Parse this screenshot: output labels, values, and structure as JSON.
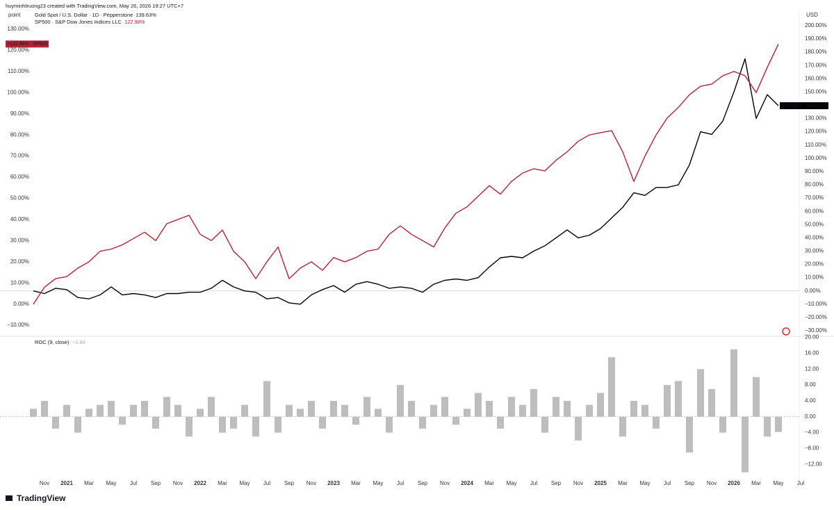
{
  "header": {
    "credit": "huyminhtruong23 created with TradingView.com, May 26, 2026 19:27 UTC+7",
    "brand": "TradingView"
  },
  "chart_data": [
    {
      "type": "line",
      "y_label": "point",
      "y2_label": "USD",
      "categories": [
        null,
        "Nov",
        null,
        "2021",
        null,
        "Mar",
        null,
        "May",
        null,
        "Jul",
        null,
        "Sep",
        null,
        "Nov",
        null,
        "2022",
        null,
        "Mar",
        null,
        "May",
        null,
        "Jul",
        null,
        "Sep",
        null,
        "Nov",
        null,
        "2023",
        null,
        "Mar",
        null,
        "May",
        null,
        "Jul",
        null,
        "Sep",
        null,
        "Nov",
        null,
        "2024",
        null,
        "Mar",
        null,
        "May",
        null,
        "Jul",
        null,
        "Sep",
        null,
        "Nov",
        null,
        "2025",
        null,
        "Mar",
        null,
        "May",
        null,
        "Jul",
        null,
        "Sep",
        null,
        "Nov",
        null,
        "2026",
        null,
        "Mar",
        null,
        "May",
        null,
        "Jul"
      ],
      "ylim": [
        -14.9,
        139.2
      ],
      "yticks": [
        {
          "value": 130,
          "label": "130.00%"
        },
        {
          "value": 120,
          "label": "120.00%"
        },
        {
          "value": 110,
          "label": "110.00%"
        },
        {
          "value": 100,
          "label": "100.00%"
        },
        {
          "value": 90,
          "label": "90.00%"
        },
        {
          "value": 80,
          "label": "80.00%"
        },
        {
          "value": 70,
          "label": "70.00%"
        },
        {
          "value": 60,
          "label": "60.00%"
        },
        {
          "value": 50,
          "label": "50.00%"
        },
        {
          "value": 40,
          "label": "40.00%"
        },
        {
          "value": 30,
          "label": "30.00%"
        },
        {
          "value": 20,
          "label": "20.00%"
        },
        {
          "value": 10,
          "label": "10.00%"
        },
        {
          "value": 0,
          "label": "0.00%"
        },
        {
          "value": -10,
          "label": "−10.00%"
        }
      ],
      "y2lim": [
        -33.7,
        212
      ],
      "y2ticks": [
        {
          "value": 200,
          "label": "200.00%"
        },
        {
          "value": 190,
          "label": "190.00%"
        },
        {
          "value": 180,
          "label": "180.00%"
        },
        {
          "value": 170,
          "label": "170.00%"
        },
        {
          "value": 160,
          "label": "160.00%"
        },
        {
          "value": 150,
          "label": "150.00%"
        },
        {
          "value": 140,
          "label": "140.00%"
        },
        {
          "value": 130,
          "label": "130.00%"
        },
        {
          "value": 120,
          "label": "120.00%"
        },
        {
          "value": 110,
          "label": "110.00%"
        },
        {
          "value": 100,
          "label": "100.00%"
        },
        {
          "value": 90,
          "label": "90.00%"
        },
        {
          "value": 80,
          "label": "80.00%"
        },
        {
          "value": 70,
          "label": "70.00%"
        },
        {
          "value": 60,
          "label": "60.00%"
        },
        {
          "value": 50,
          "label": "50.00%"
        },
        {
          "value": 40,
          "label": "40.00%"
        },
        {
          "value": 30,
          "label": "30.00%"
        },
        {
          "value": 20,
          "label": "20.00%"
        },
        {
          "value": 10,
          "label": "10.00%"
        },
        {
          "value": 0,
          "label": "0.00%"
        },
        {
          "value": -10,
          "label": "−10.00%"
        },
        {
          "value": -20,
          "label": "−20.00%"
        },
        {
          "value": -30,
          "label": "−30.00%"
        }
      ],
      "series": [
        {
          "name": "Gold Spot / U.S. Dollar · 1D · Pepperstone",
          "symbol": "XAUUSD",
          "color": "#000000",
          "axis": "y2",
          "last_label": "139.63%",
          "tag_label": "+139.63%",
          "values": [
            0,
            -2,
            2,
            1,
            -5,
            -6,
            -3,
            3,
            -3,
            -2,
            -3,
            -5,
            -2,
            -2,
            -1,
            -1,
            2,
            8,
            3,
            0,
            -1,
            -6,
            -5,
            -9,
            -10,
            -3,
            1,
            4,
            -1,
            5,
            7,
            5,
            2,
            3,
            2,
            -1,
            5,
            8,
            9,
            8,
            10,
            18,
            25,
            26,
            25,
            30,
            34,
            40,
            46,
            40,
            42,
            47,
            55,
            63,
            74,
            72,
            78,
            78,
            80,
            95,
            120,
            118,
            128,
            150,
            175,
            130,
            148,
            139.63,
            null,
            null
          ]
        },
        {
          "name": "SP500 · S&P Dow Jones Indices LLC",
          "symbol": "SP500",
          "color": "#b22234",
          "last_label": "122.98%",
          "tag_label": "+122.98%",
          "values": [
            0,
            8,
            12,
            13,
            17,
            20,
            25,
            26,
            28,
            31,
            34,
            30,
            38,
            40,
            42,
            33,
            30,
            35,
            25,
            20,
            12,
            20,
            27,
            12,
            17,
            20,
            16,
            22,
            20,
            22,
            25,
            26,
            33,
            37,
            33,
            30,
            27,
            36,
            43,
            46,
            51,
            56,
            52,
            58,
            62,
            64,
            63,
            68,
            72,
            77,
            80,
            81,
            82,
            72,
            58,
            70,
            80,
            88,
            93,
            99,
            103,
            104,
            108,
            110,
            108,
            100,
            112,
            122.98,
            null,
            null
          ]
        }
      ]
    },
    {
      "type": "bar",
      "title": "ROC (9, close)",
      "last_label": "−3.84",
      "color": "#bdbdbd",
      "categories": [
        null,
        "Nov",
        null,
        "2021",
        null,
        "Mar",
        null,
        "May",
        null,
        "Jul",
        null,
        "Sep",
        null,
        "Nov",
        null,
        "2022",
        null,
        "Mar",
        null,
        "May",
        null,
        "Jul",
        null,
        "Sep",
        null,
        "Nov",
        null,
        "2023",
        null,
        "Mar",
        null,
        "May",
        null,
        "Jul",
        null,
        "Sep",
        null,
        "Nov",
        null,
        "2024",
        null,
        "Mar",
        null,
        "May",
        null,
        "Jul",
        null,
        "Sep",
        null,
        "Nov",
        null,
        "2025",
        null,
        "Mar",
        null,
        "May",
        null,
        "Jul",
        null,
        "Sep",
        null,
        "Nov",
        null,
        "2026",
        null,
        "Mar",
        null,
        "May",
        null,
        "Jul"
      ],
      "values": [
        2,
        4,
        -3,
        3,
        -4,
        2,
        3,
        4,
        -2,
        3,
        4,
        -3,
        5,
        3,
        -5,
        2,
        5,
        -4,
        -3,
        3,
        -5,
        9,
        -4,
        3,
        2,
        4,
        -3,
        4,
        3,
        -2,
        5,
        2,
        -4,
        8,
        4,
        -3,
        3,
        5,
        -2,
        2,
        6,
        4,
        -3,
        5,
        3,
        7,
        -4,
        5,
        4,
        -6,
        3,
        6,
        15,
        -5,
        4,
        3,
        -3,
        8,
        9,
        -9,
        12,
        7,
        -4,
        17,
        -14,
        10,
        -5,
        -3.84,
        null,
        null
      ],
      "ylim": [
        -15.8,
        20.1
      ],
      "yticks": [
        {
          "value": 20,
          "label": "20.00"
        },
        {
          "value": 16,
          "label": "16.00"
        },
        {
          "value": 12,
          "label": "12.00"
        },
        {
          "value": 8,
          "label": "8.00"
        },
        {
          "value": 4,
          "label": "4.00"
        },
        {
          "value": 0,
          "label": "0.00"
        },
        {
          "value": -4,
          "label": "−4.00"
        },
        {
          "value": -8,
          "label": "−8.00"
        },
        {
          "value": -12,
          "label": "−12.00"
        }
      ]
    }
  ]
}
